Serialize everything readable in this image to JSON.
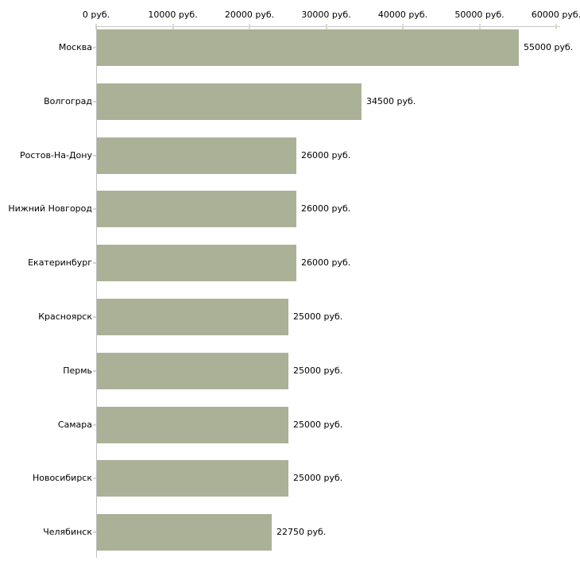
{
  "chart_data": {
    "type": "bar",
    "orientation": "horizontal",
    "title": "",
    "unit": "руб.",
    "categories": [
      "Москва",
      "Волгоград",
      "Ростов-На-Дону",
      "Нижний Новгород",
      "Екатеринбург",
      "Красноярск",
      "Пермь",
      "Самара",
      "Новосибирск",
      "Челябинск"
    ],
    "values": [
      55000,
      34500,
      26000,
      26000,
      26000,
      25000,
      25000,
      25000,
      25000,
      22750
    ],
    "value_labels": [
      "55000 руб.",
      "34500 руб.",
      "26000 руб.",
      "26000 руб.",
      "26000 руб.",
      "25000 руб.",
      "25000 руб.",
      "25000 руб.",
      "25000 руб.",
      "22750 руб."
    ],
    "x_tick_values": [
      0,
      10000,
      20000,
      30000,
      40000,
      50000,
      60000
    ],
    "x_tick_labels": [
      "0 руб.",
      "10000 руб.",
      "20000 руб.",
      "30000 руб.",
      "40000 руб.",
      "50000 руб.",
      "60000 руб."
    ],
    "xlim": [
      0,
      60000
    ],
    "grid": false,
    "legend": false,
    "axis_position": "top",
    "colors": {
      "bar": "#abb197",
      "x_axis_line": "#c8c8c8",
      "y_axis_line": "#c0c0c0",
      "tick_mark": "#d9dcc1",
      "y_tick_mark": "#d9d6c3",
      "text": "#000000",
      "background": "#ffffff"
    }
  }
}
